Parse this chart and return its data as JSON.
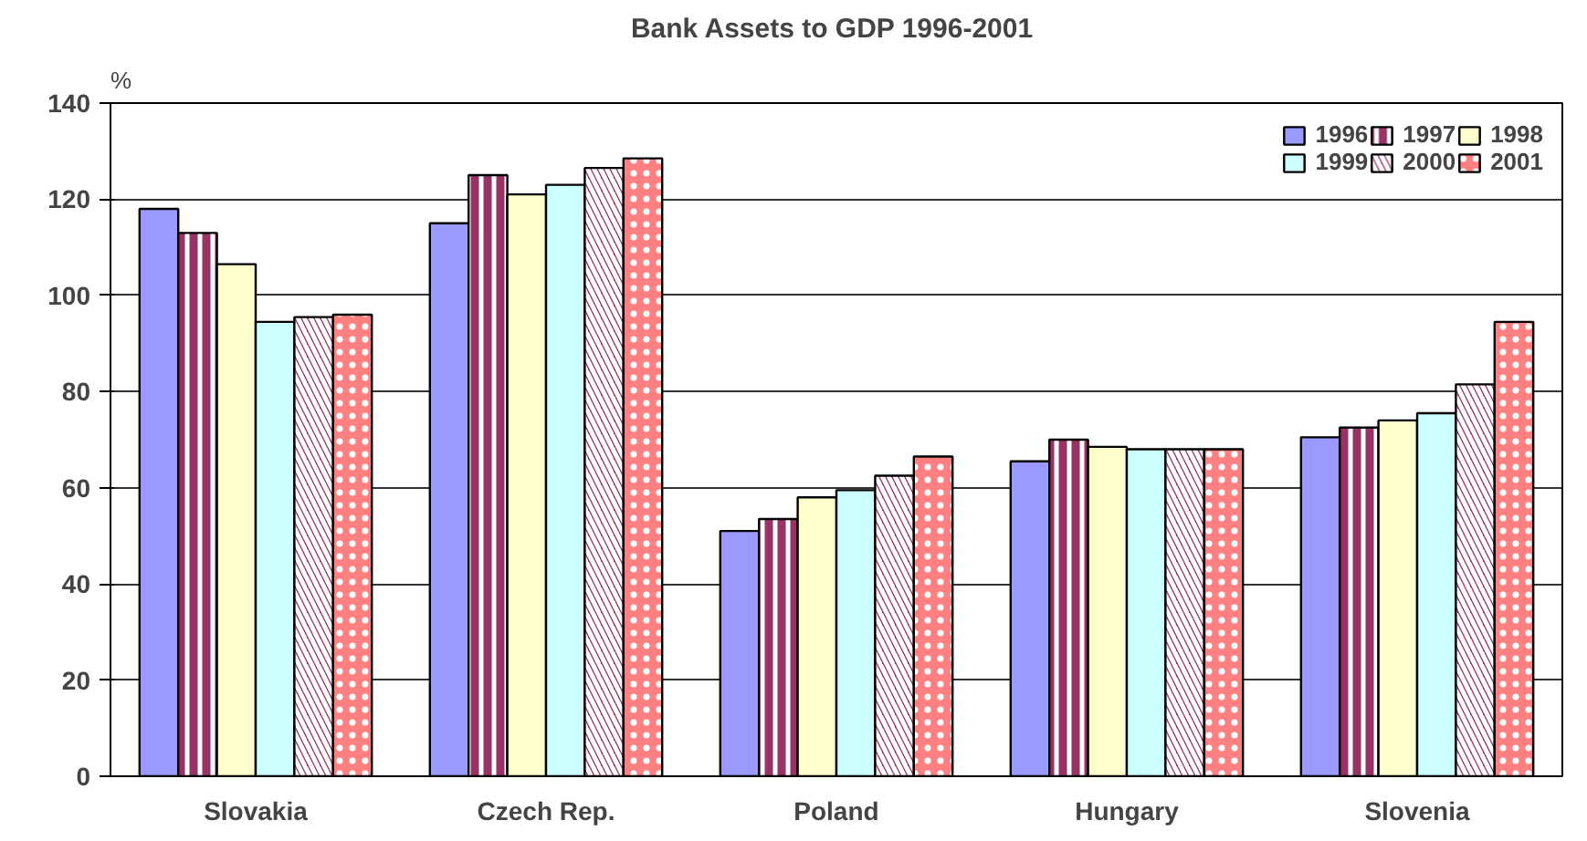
{
  "chart_data": {
    "type": "bar",
    "title": "Bank Assets  to GDP 1996-2001",
    "ylabel": "%",
    "categories": [
      "Slovakia",
      "Czech Rep.",
      "Poland",
      "Hungary",
      "Slovenia"
    ],
    "series": [
      {
        "name": "1996",
        "color": "#9999ff",
        "values": [
          118,
          115,
          51,
          65.5,
          70.5
        ]
      },
      {
        "name": "1997",
        "color": "#993366",
        "values": [
          113,
          125,
          53.5,
          70,
          72.5
        ]
      },
      {
        "name": "1998",
        "color": "#ffffcc",
        "values": [
          106.5,
          121,
          58,
          68.5,
          74
        ]
      },
      {
        "name": "1999",
        "color": "#ccffff",
        "values": [
          94.5,
          123,
          59.5,
          68,
          75.5
        ]
      },
      {
        "name": "2000",
        "color": "#993366",
        "values": [
          95.5,
          126.5,
          62.5,
          68,
          81.5
        ]
      },
      {
        "name": "2001",
        "color": "#ff8080",
        "values": [
          96,
          128.5,
          66.5,
          68,
          94.5
        ]
      }
    ],
    "ylim": [
      0,
      140
    ],
    "yticks": [
      0,
      20,
      40,
      60,
      80,
      100,
      120,
      140
    ],
    "grid": "y",
    "legend": "top right"
  }
}
